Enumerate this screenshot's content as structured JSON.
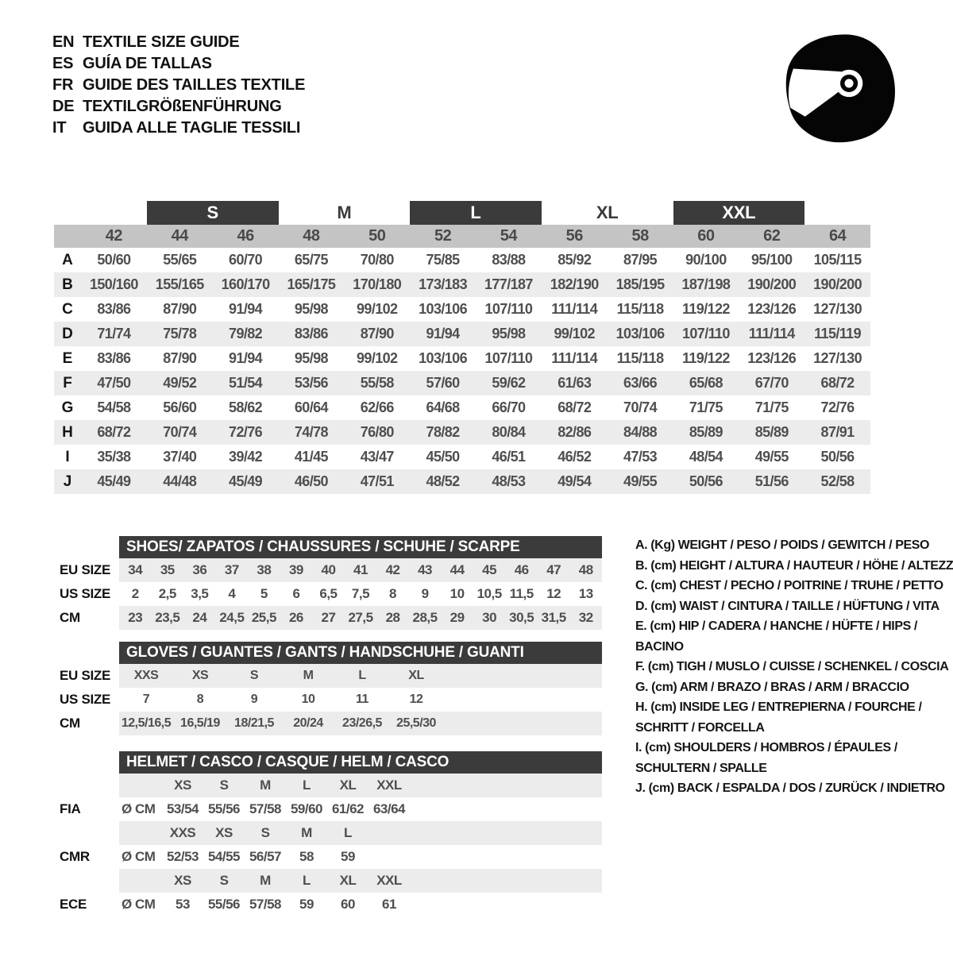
{
  "colors": {
    "dark_bar": "#3b3b3b",
    "size_row_bg": "#c4c4c4",
    "stripe_row_bg": "#ececec",
    "bar_text": "#ffffff",
    "value_text": "#4f4f4f",
    "icon_color": "#050505"
  },
  "header": {
    "languages": [
      {
        "code": "EN",
        "title": "TEXTILE SIZE GUIDE"
      },
      {
        "code": "ES",
        "title": "GUÍA DE TALLAS"
      },
      {
        "code": "FR",
        "title": "GUIDE DES TAILLES TEXTILE"
      },
      {
        "code": "DE",
        "title": "TEXTILGRÖßENFÜHRUNG"
      },
      {
        "code": "IT",
        "title": "GUIDA ALLE TAGLIE TESSILI"
      }
    ],
    "helmet_icon": "racing-helmet-icon"
  },
  "main_table": {
    "size_bands": [
      {
        "label": "S",
        "highlighted": true,
        "covers": [
          "44",
          "46"
        ]
      },
      {
        "label": "M",
        "highlighted": false,
        "covers": [
          "48",
          "50"
        ]
      },
      {
        "label": "L",
        "highlighted": true,
        "covers": [
          "52",
          "54"
        ]
      },
      {
        "label": "XL",
        "highlighted": false,
        "covers": [
          "56",
          "58"
        ]
      },
      {
        "label": "XXL",
        "highlighted": true,
        "covers": [
          "60",
          "62"
        ]
      }
    ],
    "numeric_sizes": [
      "42",
      "44",
      "46",
      "48",
      "50",
      "52",
      "54",
      "56",
      "58",
      "60",
      "62",
      "64"
    ],
    "rows": [
      {
        "label": "A",
        "values": [
          "50/60",
          "55/65",
          "60/70",
          "65/75",
          "70/80",
          "75/85",
          "83/88",
          "85/92",
          "87/95",
          "90/100",
          "95/100",
          "105/115"
        ]
      },
      {
        "label": "B",
        "values": [
          "150/160",
          "155/165",
          "160/170",
          "165/175",
          "170/180",
          "173/183",
          "177/187",
          "182/190",
          "185/195",
          "187/198",
          "190/200",
          "190/200"
        ]
      },
      {
        "label": "C",
        "values": [
          "83/86",
          "87/90",
          "91/94",
          "95/98",
          "99/102",
          "103/106",
          "107/110",
          "111/114",
          "115/118",
          "119/122",
          "123/126",
          "127/130"
        ]
      },
      {
        "label": "D",
        "values": [
          "71/74",
          "75/78",
          "79/82",
          "83/86",
          "87/90",
          "91/94",
          "95/98",
          "99/102",
          "103/106",
          "107/110",
          "111/114",
          "115/119"
        ]
      },
      {
        "label": "E",
        "values": [
          "83/86",
          "87/90",
          "91/94",
          "95/98",
          "99/102",
          "103/106",
          "107/110",
          "111/114",
          "115/118",
          "119/122",
          "123/126",
          "127/130"
        ]
      },
      {
        "label": "F",
        "values": [
          "47/50",
          "49/52",
          "51/54",
          "53/56",
          "55/58",
          "57/60",
          "59/62",
          "61/63",
          "63/66",
          "65/68",
          "67/70",
          "68/72"
        ]
      },
      {
        "label": "G",
        "values": [
          "54/58",
          "56/60",
          "58/62",
          "60/64",
          "62/66",
          "64/68",
          "66/70",
          "68/72",
          "70/74",
          "71/75",
          "71/75",
          "72/76"
        ]
      },
      {
        "label": "H",
        "values": [
          "68/72",
          "70/74",
          "72/76",
          "74/78",
          "76/80",
          "78/82",
          "80/84",
          "82/86",
          "84/88",
          "85/89",
          "85/89",
          "87/91"
        ]
      },
      {
        "label": "I",
        "values": [
          "35/38",
          "37/40",
          "39/42",
          "41/45",
          "43/47",
          "45/50",
          "46/51",
          "46/52",
          "47/53",
          "48/54",
          "49/55",
          "50/56"
        ]
      },
      {
        "label": "J",
        "values": [
          "45/49",
          "44/48",
          "45/49",
          "46/50",
          "47/51",
          "48/52",
          "48/53",
          "49/54",
          "49/55",
          "50/56",
          "51/56",
          "52/58"
        ]
      }
    ]
  },
  "shoes_table": {
    "title": "SHOES/ ZAPATOS / CHAUSSURES / SCHUHE / SCARPE",
    "rows": [
      {
        "label": "EU SIZE",
        "values": [
          "34",
          "35",
          "36",
          "37",
          "38",
          "39",
          "40",
          "41",
          "42",
          "43",
          "44",
          "45",
          "46",
          "47",
          "48"
        ]
      },
      {
        "label": "US SIZE",
        "values": [
          "2",
          "2,5",
          "3,5",
          "4",
          "5",
          "6",
          "6,5",
          "7,5",
          "8",
          "9",
          "10",
          "10,5",
          "11,5",
          "12",
          "13"
        ]
      },
      {
        "label": "CM",
        "values": [
          "23",
          "23,5",
          "24",
          "24,5",
          "25,5",
          "26",
          "27",
          "27,5",
          "28",
          "28,5",
          "29",
          "30",
          "30,5",
          "31,5",
          "32"
        ]
      }
    ]
  },
  "gloves_table": {
    "title": "GLOVES / GUANTES / GANTS / HANDSCHUHE / GUANTI",
    "rows": [
      {
        "label": "EU SIZE",
        "values": [
          "XXS",
          "XS",
          "S",
          "M",
          "L",
          "XL"
        ]
      },
      {
        "label": "US SIZE",
        "values": [
          "7",
          "8",
          "9",
          "10",
          "11",
          "12"
        ]
      },
      {
        "label": "CM",
        "values": [
          "12,5/16,5",
          "16,5/19",
          "18/21,5",
          "20/24",
          "23/26,5",
          "25,5/30"
        ]
      }
    ]
  },
  "helmet_table": {
    "title": "HELMET / CASCO / CASQUE / HELM / CASCO",
    "sections": [
      {
        "standard": "FIA",
        "unit": "Ø CM",
        "sizes": [
          "XS",
          "S",
          "M",
          "L",
          "XL",
          "XXL"
        ],
        "values": [
          "53/54",
          "55/56",
          "57/58",
          "59/60",
          "61/62",
          "63/64"
        ]
      },
      {
        "standard": "CMR",
        "unit": "Ø CM",
        "sizes": [
          "XXS",
          "XS",
          "S",
          "M",
          "L"
        ],
        "values": [
          "52/53",
          "54/55",
          "56/57",
          "58",
          "59"
        ]
      },
      {
        "standard": "ECE",
        "unit": "Ø CM",
        "sizes": [
          "XS",
          "S",
          "M",
          "L",
          "XL",
          "XXL"
        ],
        "values": [
          "53",
          "55/56",
          "57/58",
          "59",
          "60",
          "61"
        ]
      }
    ]
  },
  "legend": {
    "items": [
      "A. (Kg) WEIGHT / PESO / POIDS / GEWITCH / PESO",
      "B. (cm) HEIGHT / ALTURA / HAUTEUR / HÖHE / ALTEZZA",
      "C. (cm) CHEST / PECHO / POITRINE / TRUHE / PETTO",
      "D. (cm) WAIST / CINTURA / TAILLE / HÜFTUNG / VITA",
      "E. (cm) HIP / CADERA / HANCHE / HÜFTE / HIPS / BACINO",
      "F. (cm) TIGH / MUSLO / CUISSE / SCHENKEL / COSCIA",
      "G. (cm) ARM / BRAZO / BRAS / ARM / BRACCIO",
      "H. (cm) INSIDE LEG / ENTREPIERNA / FOURCHE / SCHRITT / FORCELLA",
      "I. (cm) SHOULDERS / HOMBROS / ÉPAULES / SCHULTERN / SPALLE",
      "J. (cm) BACK / ESPALDA / DOS / ZURÜCK / INDIETRO"
    ]
  }
}
